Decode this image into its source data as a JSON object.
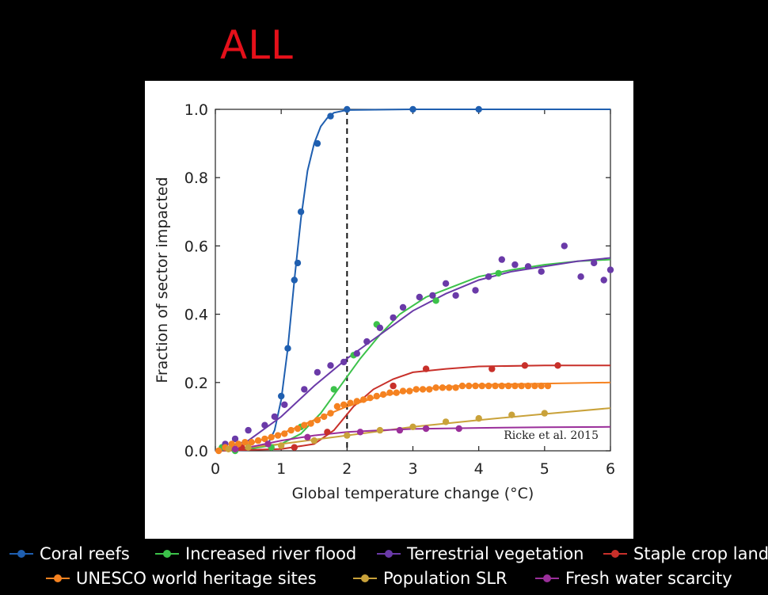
{
  "heading": "ALL",
  "colors": {
    "Coral reefs": "#1f5fb0",
    "Increased river flood": "#3cc24a",
    "Terrestrial vegetation": "#6a3aa8",
    "Staple crop land": "#c8302a",
    "UNESCO world heritage sites": "#f58220",
    "Population SLR": "#c9a23a",
    "Fresh water scarcity": "#9a2f9a"
  },
  "chart_data": {
    "type": "scatter",
    "xlabel": "Global temperature change (°C)",
    "ylabel": "Fraction of sector impacted",
    "xlim": [
      0,
      6
    ],
    "ylim": [
      0,
      1.0
    ],
    "xticks": [
      "0",
      "1",
      "2",
      "3",
      "4",
      "5",
      "6"
    ],
    "yticks": [
      "0.0",
      "0.2",
      "0.4",
      "0.6",
      "0.8",
      "1.0"
    ],
    "threshold_x": 2,
    "annotation": "Ricke et al. 2015",
    "legend_position": "bottom",
    "series": [
      {
        "name": "Coral reefs",
        "points": [
          [
            1.0,
            0.16
          ],
          [
            1.1,
            0.3
          ],
          [
            1.2,
            0.5
          ],
          [
            1.25,
            0.55
          ],
          [
            1.3,
            0.7
          ],
          [
            1.55,
            0.9
          ],
          [
            1.75,
            0.98
          ],
          [
            2.0,
            1.0
          ],
          [
            3.0,
            1.0
          ],
          [
            4.0,
            1.0
          ]
        ],
        "curve": [
          [
            0.0,
            0.0
          ],
          [
            0.5,
            0.002
          ],
          [
            0.8,
            0.02
          ],
          [
            0.9,
            0.06
          ],
          [
            1.0,
            0.15
          ],
          [
            1.1,
            0.3
          ],
          [
            1.2,
            0.5
          ],
          [
            1.3,
            0.68
          ],
          [
            1.4,
            0.82
          ],
          [
            1.5,
            0.9
          ],
          [
            1.6,
            0.95
          ],
          [
            1.7,
            0.975
          ],
          [
            1.8,
            0.99
          ],
          [
            2.0,
            0.998
          ],
          [
            3.0,
            1.0
          ],
          [
            6.0,
            1.0
          ]
        ]
      },
      {
        "name": "Increased river flood",
        "points": [
          [
            0.1,
            0.01
          ],
          [
            0.3,
            0.0
          ],
          [
            0.85,
            0.01
          ],
          [
            1.3,
            0.07
          ],
          [
            1.8,
            0.18
          ],
          [
            2.1,
            0.28
          ],
          [
            2.45,
            0.37
          ],
          [
            3.35,
            0.44
          ],
          [
            4.3,
            0.52
          ]
        ],
        "curve": [
          [
            0.0,
            0.0
          ],
          [
            0.5,
            0.005
          ],
          [
            1.0,
            0.02
          ],
          [
            1.3,
            0.05
          ],
          [
            1.6,
            0.11
          ],
          [
            1.9,
            0.19
          ],
          [
            2.2,
            0.27
          ],
          [
            2.5,
            0.34
          ],
          [
            2.8,
            0.4
          ],
          [
            3.2,
            0.45
          ],
          [
            3.6,
            0.48
          ],
          [
            4.0,
            0.51
          ],
          [
            4.5,
            0.53
          ],
          [
            5.0,
            0.545
          ],
          [
            5.5,
            0.555
          ],
          [
            6.0,
            0.56
          ]
        ]
      },
      {
        "name": "Terrestrial vegetation",
        "points": [
          [
            0.15,
            0.02
          ],
          [
            0.3,
            0.035
          ],
          [
            0.5,
            0.06
          ],
          [
            0.75,
            0.075
          ],
          [
            0.9,
            0.1
          ],
          [
            1.05,
            0.135
          ],
          [
            1.35,
            0.18
          ],
          [
            1.55,
            0.23
          ],
          [
            1.75,
            0.25
          ],
          [
            1.95,
            0.26
          ],
          [
            2.15,
            0.285
          ],
          [
            2.3,
            0.32
          ],
          [
            2.5,
            0.36
          ],
          [
            2.7,
            0.39
          ],
          [
            2.85,
            0.42
          ],
          [
            3.1,
            0.45
          ],
          [
            3.3,
            0.455
          ],
          [
            3.5,
            0.49
          ],
          [
            3.65,
            0.455
          ],
          [
            3.95,
            0.47
          ],
          [
            4.15,
            0.51
          ],
          [
            4.35,
            0.56
          ],
          [
            4.55,
            0.545
          ],
          [
            4.75,
            0.54
          ],
          [
            4.95,
            0.525
          ],
          [
            5.3,
            0.6
          ],
          [
            5.55,
            0.51
          ],
          [
            5.75,
            0.55
          ],
          [
            5.9,
            0.5
          ],
          [
            6.0,
            0.53
          ]
        ],
        "curve": [
          [
            0.0,
            0.0
          ],
          [
            0.5,
            0.03
          ],
          [
            1.0,
            0.1
          ],
          [
            1.5,
            0.19
          ],
          [
            2.0,
            0.27
          ],
          [
            2.5,
            0.34
          ],
          [
            3.0,
            0.41
          ],
          [
            3.5,
            0.46
          ],
          [
            4.0,
            0.5
          ],
          [
            4.5,
            0.525
          ],
          [
            5.0,
            0.54
          ],
          [
            5.5,
            0.555
          ],
          [
            6.0,
            0.565
          ]
        ]
      },
      {
        "name": "Staple crop land",
        "points": [
          [
            0.4,
            0.01
          ],
          [
            1.2,
            0.01
          ],
          [
            1.7,
            0.055
          ],
          [
            2.7,
            0.19
          ],
          [
            3.2,
            0.24
          ],
          [
            4.2,
            0.24
          ],
          [
            4.7,
            0.25
          ],
          [
            5.2,
            0.25
          ]
        ],
        "curve": [
          [
            0.0,
            0.0
          ],
          [
            1.0,
            0.005
          ],
          [
            1.5,
            0.02
          ],
          [
            1.8,
            0.06
          ],
          [
            2.1,
            0.13
          ],
          [
            2.4,
            0.18
          ],
          [
            2.7,
            0.21
          ],
          [
            3.0,
            0.23
          ],
          [
            3.5,
            0.24
          ],
          [
            4.0,
            0.247
          ],
          [
            5.0,
            0.25
          ],
          [
            6.0,
            0.25
          ]
        ]
      },
      {
        "name": "UNESCO world heritage sites",
        "points": [
          [
            0.05,
            0.0
          ],
          [
            0.15,
            0.01
          ],
          [
            0.25,
            0.02
          ],
          [
            0.35,
            0.02
          ],
          [
            0.45,
            0.025
          ],
          [
            0.55,
            0.025
          ],
          [
            0.65,
            0.03
          ],
          [
            0.75,
            0.035
          ],
          [
            0.85,
            0.04
          ],
          [
            0.95,
            0.045
          ],
          [
            1.05,
            0.05
          ],
          [
            1.15,
            0.06
          ],
          [
            1.25,
            0.065
          ],
          [
            1.35,
            0.075
          ],
          [
            1.45,
            0.08
          ],
          [
            1.55,
            0.09
          ],
          [
            1.65,
            0.1
          ],
          [
            1.75,
            0.11
          ],
          [
            1.85,
            0.13
          ],
          [
            1.95,
            0.135
          ],
          [
            2.05,
            0.14
          ],
          [
            2.15,
            0.145
          ],
          [
            2.25,
            0.15
          ],
          [
            2.35,
            0.155
          ],
          [
            2.45,
            0.16
          ],
          [
            2.55,
            0.165
          ],
          [
            2.65,
            0.17
          ],
          [
            2.75,
            0.17
          ],
          [
            2.85,
            0.175
          ],
          [
            2.95,
            0.175
          ],
          [
            3.05,
            0.18
          ],
          [
            3.15,
            0.18
          ],
          [
            3.25,
            0.18
          ],
          [
            3.35,
            0.185
          ],
          [
            3.45,
            0.185
          ],
          [
            3.55,
            0.185
          ],
          [
            3.65,
            0.185
          ],
          [
            3.75,
            0.19
          ],
          [
            3.85,
            0.19
          ],
          [
            3.95,
            0.19
          ],
          [
            4.05,
            0.19
          ],
          [
            4.15,
            0.19
          ],
          [
            4.25,
            0.19
          ],
          [
            4.35,
            0.19
          ],
          [
            4.45,
            0.19
          ],
          [
            4.55,
            0.19
          ],
          [
            4.65,
            0.19
          ],
          [
            4.75,
            0.19
          ],
          [
            4.85,
            0.19
          ],
          [
            4.95,
            0.19
          ],
          [
            5.05,
            0.19
          ]
        ],
        "curve": [
          [
            0.0,
            0.0
          ],
          [
            0.5,
            0.02
          ],
          [
            1.0,
            0.05
          ],
          [
            1.5,
            0.09
          ],
          [
            2.0,
            0.13
          ],
          [
            2.5,
            0.16
          ],
          [
            3.0,
            0.178
          ],
          [
            3.5,
            0.188
          ],
          [
            4.0,
            0.193
          ],
          [
            5.0,
            0.197
          ],
          [
            6.0,
            0.2
          ]
        ]
      },
      {
        "name": "Population SLR",
        "points": [
          [
            0.2,
            0.005
          ],
          [
            0.5,
            0.01
          ],
          [
            1.0,
            0.015
          ],
          [
            1.5,
            0.03
          ],
          [
            2.0,
            0.045
          ],
          [
            2.5,
            0.06
          ],
          [
            3.0,
            0.07
          ],
          [
            3.5,
            0.085
          ],
          [
            4.0,
            0.095
          ],
          [
            4.5,
            0.105
          ],
          [
            5.0,
            0.11
          ]
        ],
        "curve": [
          [
            0.0,
            0.0
          ],
          [
            1.0,
            0.02
          ],
          [
            2.0,
            0.045
          ],
          [
            3.0,
            0.07
          ],
          [
            4.0,
            0.09
          ],
          [
            5.0,
            0.108
          ],
          [
            6.0,
            0.125
          ]
        ]
      },
      {
        "name": "Fresh water scarcity",
        "points": [
          [
            0.3,
            0.005
          ],
          [
            0.8,
            0.02
          ],
          [
            1.4,
            0.04
          ],
          [
            2.2,
            0.055
          ],
          [
            2.8,
            0.06
          ],
          [
            3.2,
            0.065
          ],
          [
            3.7,
            0.065
          ]
        ],
        "curve": [
          [
            0.0,
            0.0
          ],
          [
            0.5,
            0.01
          ],
          [
            1.0,
            0.03
          ],
          [
            1.5,
            0.045
          ],
          [
            2.0,
            0.055
          ],
          [
            2.5,
            0.06
          ],
          [
            3.0,
            0.064
          ],
          [
            4.0,
            0.067
          ],
          [
            5.0,
            0.069
          ],
          [
            6.0,
            0.07
          ]
        ]
      }
    ]
  }
}
